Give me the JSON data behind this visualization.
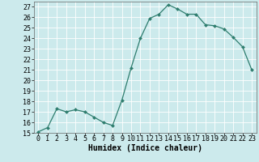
{
  "x": [
    0,
    1,
    2,
    3,
    4,
    5,
    6,
    7,
    8,
    9,
    10,
    11,
    12,
    13,
    14,
    15,
    16,
    17,
    18,
    19,
    20,
    21,
    22,
    23
  ],
  "y": [
    15.1,
    15.5,
    17.3,
    17.0,
    17.2,
    17.0,
    16.5,
    16.0,
    15.7,
    18.1,
    21.2,
    24.0,
    25.9,
    26.3,
    27.2,
    26.8,
    26.3,
    26.3,
    25.3,
    25.2,
    24.9,
    24.1,
    23.2,
    21.0
  ],
  "line_color": "#2e7d6e",
  "marker": "D",
  "marker_size": 2.0,
  "bg_color": "#cceaec",
  "grid_color": "#ffffff",
  "xlabel": "Humidex (Indice chaleur)",
  "ylim": [
    15,
    27.5
  ],
  "xlim": [
    -0.5,
    23.5
  ],
  "yticks": [
    15,
    16,
    17,
    18,
    19,
    20,
    21,
    22,
    23,
    24,
    25,
    26,
    27
  ],
  "xticks": [
    0,
    1,
    2,
    3,
    4,
    5,
    6,
    7,
    8,
    9,
    10,
    11,
    12,
    13,
    14,
    15,
    16,
    17,
    18,
    19,
    20,
    21,
    22,
    23
  ],
  "xtick_labels": [
    "0",
    "1",
    "2",
    "3",
    "4",
    "5",
    "6",
    "7",
    "8",
    "9",
    "10",
    "11",
    "12",
    "13",
    "14",
    "15",
    "16",
    "17",
    "18",
    "19",
    "20",
    "21",
    "22",
    "23"
  ],
  "xlabel_fontsize": 7,
  "tick_fontsize": 6
}
